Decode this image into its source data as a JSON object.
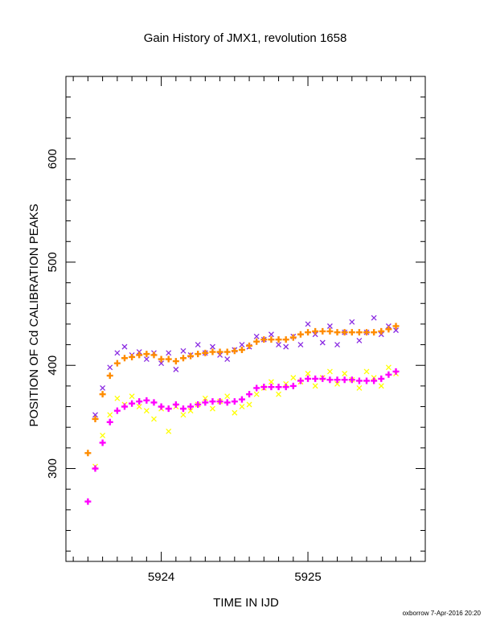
{
  "chart_data": {
    "type": "scatter",
    "title": "Gain History of JMX1, revolution 1658",
    "xlabel": "TIME IN IJD",
    "ylabel": "POSITION OF Cd CALIBRATION PEAKS",
    "xlim": [
      5923.35,
      5925.8
    ],
    "ylim": [
      210,
      680
    ],
    "x_ticks": [
      5924,
      5925
    ],
    "y_ticks": [
      300,
      400,
      500,
      600
    ],
    "grid": false,
    "legend": "none",
    "footer": "oxborrow  7-Apr-2016 20:20",
    "colors": {
      "upper_points": "#8a2be2",
      "upper_fit": "#ff8c00",
      "lower_points": "#ffff00",
      "lower_fit": "#ff00ff"
    },
    "series": [
      {
        "marker": "x",
        "color": "#8a2be2",
        "x": [
          5923.55,
          5923.6,
          5923.65,
          5923.7,
          5923.75,
          5923.8,
          5923.85,
          5923.9,
          5923.95,
          5924.0,
          5924.05,
          5924.1,
          5924.15,
          5924.2,
          5924.25,
          5924.3,
          5924.35,
          5924.4,
          5924.45,
          5924.5,
          5924.55,
          5924.6,
          5924.65,
          5924.7,
          5924.75,
          5924.8,
          5924.85,
          5924.9,
          5924.95,
          5925.0,
          5925.05,
          5925.1,
          5925.15,
          5925.2,
          5925.25,
          5925.3,
          5925.35,
          5925.4,
          5925.45,
          5925.5,
          5925.55,
          5925.6
        ],
        "y": [
          352,
          378,
          398,
          412,
          418,
          410,
          413,
          406,
          412,
          402,
          412,
          396,
          414,
          410,
          420,
          412,
          418,
          410,
          406,
          415,
          420,
          418,
          428,
          425,
          430,
          420,
          418,
          428,
          420,
          440,
          430,
          422,
          438,
          420,
          432,
          442,
          424,
          432,
          446,
          430,
          438,
          434
        ]
      },
      {
        "marker": "+",
        "color": "#ff8c00",
        "x": [
          5923.5,
          5923.55,
          5923.6,
          5923.65,
          5923.7,
          5923.75,
          5923.8,
          5923.85,
          5923.9,
          5923.95,
          5924.0,
          5924.05,
          5924.1,
          5924.15,
          5924.2,
          5924.25,
          5924.3,
          5924.35,
          5924.4,
          5924.45,
          5924.5,
          5924.55,
          5924.6,
          5924.65,
          5924.7,
          5924.75,
          5924.8,
          5924.85,
          5924.9,
          5924.95,
          5925.0,
          5925.05,
          5925.1,
          5925.15,
          5925.2,
          5925.25,
          5925.3,
          5925.35,
          5925.4,
          5925.45,
          5925.5,
          5925.55,
          5925.6
        ],
        "y": [
          315,
          348,
          372,
          390,
          402,
          407,
          408,
          410,
          411,
          410,
          406,
          406,
          404,
          407,
          409,
          411,
          412,
          413,
          413,
          413,
          414,
          415,
          419,
          423,
          425,
          425,
          425,
          425,
          427,
          430,
          432,
          433,
          433,
          433,
          432,
          432,
          432,
          432,
          432,
          432,
          433,
          435,
          438
        ]
      },
      {
        "marker": "x",
        "color": "#ffff00",
        "x": [
          5923.55,
          5923.6,
          5923.65,
          5923.7,
          5923.75,
          5923.8,
          5923.85,
          5923.9,
          5923.95,
          5924.0,
          5924.05,
          5924.1,
          5924.15,
          5924.2,
          5924.25,
          5924.3,
          5924.35,
          5924.4,
          5924.45,
          5924.5,
          5924.55,
          5924.6,
          5924.65,
          5924.7,
          5924.75,
          5924.8,
          5924.85,
          5924.9,
          5924.95,
          5925.0,
          5925.05,
          5925.1,
          5925.15,
          5925.2,
          5925.25,
          5925.3,
          5925.35,
          5925.4,
          5925.45,
          5925.5,
          5925.55,
          5925.6
        ],
        "y": [
          302,
          332,
          352,
          368,
          362,
          370,
          360,
          356,
          348,
          358,
          336,
          360,
          352,
          356,
          362,
          368,
          358,
          365,
          370,
          354,
          360,
          362,
          372,
          378,
          384,
          372,
          382,
          388,
          384,
          392,
          380,
          388,
          394,
          382,
          392,
          386,
          378,
          394,
          388,
          380,
          398,
          392
        ]
      },
      {
        "marker": "+",
        "color": "#ff00ff",
        "x": [
          5923.5,
          5923.55,
          5923.6,
          5923.65,
          5923.7,
          5923.75,
          5923.8,
          5923.85,
          5923.9,
          5923.95,
          5924.0,
          5924.05,
          5924.1,
          5924.15,
          5924.2,
          5924.25,
          5924.3,
          5924.35,
          5924.4,
          5924.45,
          5924.5,
          5924.55,
          5924.6,
          5924.65,
          5924.7,
          5924.75,
          5924.8,
          5924.85,
          5924.9,
          5924.95,
          5925.0,
          5925.05,
          5925.1,
          5925.15,
          5925.2,
          5925.25,
          5925.3,
          5925.35,
          5925.4,
          5925.45,
          5925.5,
          5925.55,
          5925.6
        ],
        "y": [
          268,
          300,
          325,
          345,
          356,
          360,
          363,
          365,
          366,
          364,
          360,
          358,
          362,
          358,
          360,
          362,
          364,
          365,
          365,
          364,
          365,
          367,
          372,
          378,
          379,
          379,
          379,
          379,
          380,
          385,
          387,
          387,
          387,
          386,
          386,
          386,
          386,
          385,
          385,
          385,
          387,
          391,
          394
        ]
      }
    ]
  }
}
